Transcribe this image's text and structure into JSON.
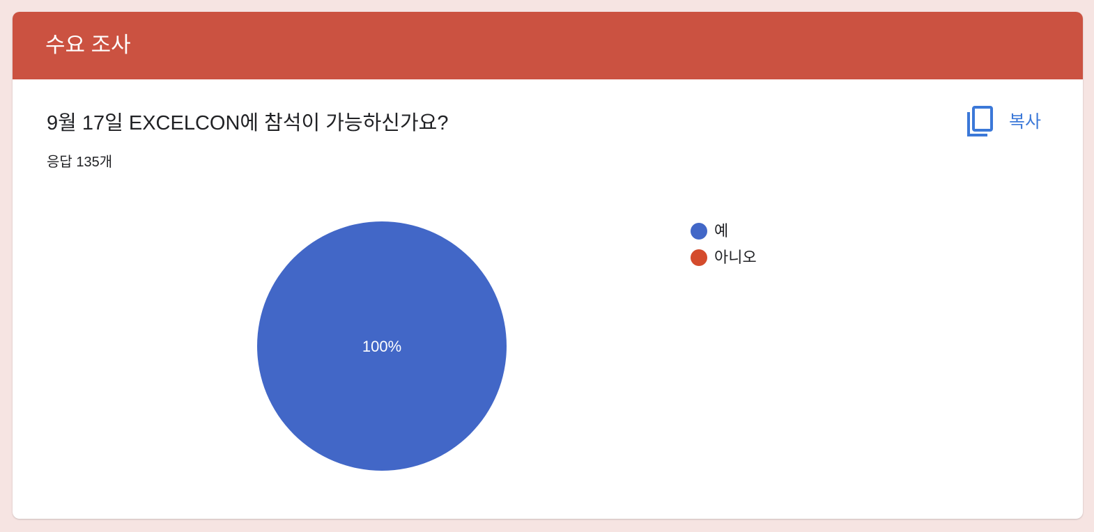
{
  "header": {
    "title": "수요 조사",
    "color": "#cb5241"
  },
  "question": {
    "title": "9월 17일 EXCELCON에 참석이 가능하신가요?",
    "response_count": "응답 135개"
  },
  "copy_button": {
    "label": "복사",
    "icon": "copy-icon",
    "color": "#3b78d8"
  },
  "chart_data": {
    "type": "pie",
    "categories": [
      "예",
      "아니오"
    ],
    "values": [
      100,
      0
    ],
    "colors": [
      "#4267c7",
      "#d44b2c"
    ],
    "data_labels": [
      "100%",
      ""
    ],
    "legend_position": "right"
  }
}
